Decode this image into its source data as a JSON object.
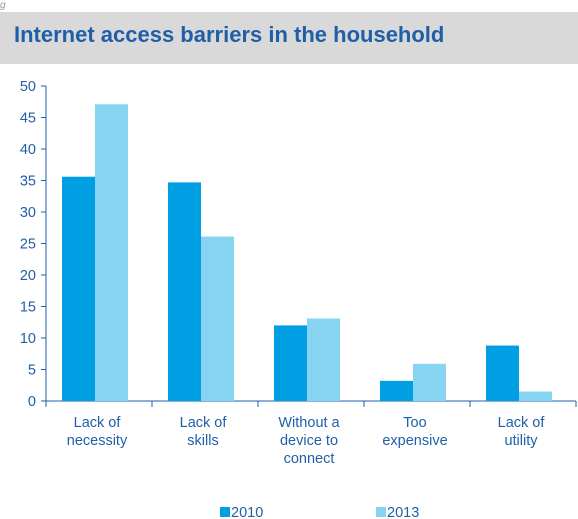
{
  "chart_data": {
    "type": "bar",
    "title": "Internet access barriers in the household",
    "categories": [
      [
        "Lack of",
        "necessity"
      ],
      [
        "Lack of",
        "skills"
      ],
      [
        "Without a",
        "device to",
        "connect"
      ],
      [
        "Too",
        "expensive"
      ],
      [
        "Lack of",
        "utility"
      ]
    ],
    "series": [
      {
        "name": "2010",
        "color": "#009fe3",
        "values": [
          35.6,
          34.7,
          12.0,
          3.2,
          8.8
        ]
      },
      {
        "name": "2013",
        "color": "#87d3f2",
        "values": [
          47.1,
          26.1,
          13.1,
          5.9,
          1.5
        ]
      }
    ],
    "ylim": [
      0,
      50
    ],
    "yticks": [
      0,
      5,
      10,
      15,
      20,
      25,
      30,
      35,
      40,
      45,
      50
    ],
    "grid": false,
    "legend": "bottom"
  }
}
